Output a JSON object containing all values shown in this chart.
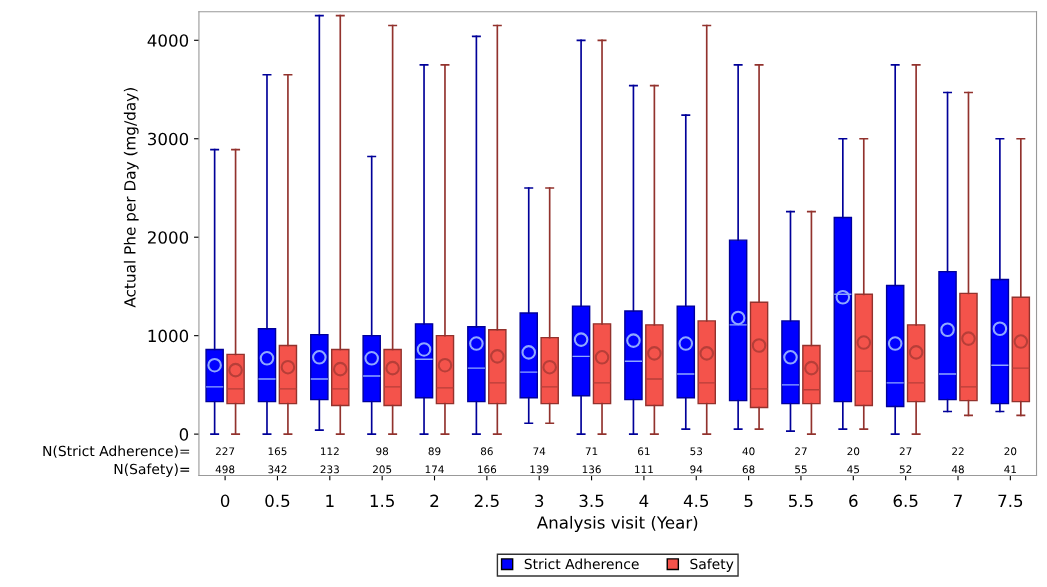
{
  "chart_data": {
    "type": "box",
    "xlabel": "Analysis visit (Year)",
    "ylabel": "Actual Phe per Day (mg/day)",
    "categories": [
      "0",
      "0.5",
      "1",
      "1.5",
      "2",
      "2.5",
      "3",
      "3.5",
      "4",
      "4.5",
      "5",
      "5.5",
      "6",
      "6.5",
      "7",
      "7.5"
    ],
    "ylim": [
      -420,
      4290
    ],
    "yticks": [
      0,
      1000,
      2000,
      3000,
      4000
    ],
    "grid": false,
    "legend": "bottom",
    "marker": "circle",
    "series": [
      {
        "name": "Strict Adherence",
        "color": "#0000ff",
        "boxes": [
          {
            "low": 0,
            "q1": 330,
            "median": 480,
            "q3": 860,
            "high": 2890,
            "mean": 700
          },
          {
            "low": 0,
            "q1": 330,
            "median": 560,
            "q3": 1070,
            "high": 3650,
            "mean": 770
          },
          {
            "low": 40,
            "q1": 350,
            "median": 560,
            "q3": 1010,
            "high": 4250,
            "mean": 780
          },
          {
            "low": 0,
            "q1": 330,
            "median": 590,
            "q3": 1000,
            "high": 2820,
            "mean": 770
          },
          {
            "low": 0,
            "q1": 370,
            "median": 760,
            "q3": 1120,
            "high": 3750,
            "mean": 860
          },
          {
            "low": 0,
            "q1": 330,
            "median": 670,
            "q3": 1090,
            "high": 4040,
            "mean": 920
          },
          {
            "low": 110,
            "q1": 370,
            "median": 630,
            "q3": 1230,
            "high": 2500,
            "mean": 830
          },
          {
            "low": 0,
            "q1": 390,
            "median": 790,
            "q3": 1300,
            "high": 4000,
            "mean": 960
          },
          {
            "low": 0,
            "q1": 350,
            "median": 740,
            "q3": 1250,
            "high": 3540,
            "mean": 950
          },
          {
            "low": 50,
            "q1": 370,
            "median": 610,
            "q3": 1300,
            "high": 3240,
            "mean": 920
          },
          {
            "low": 50,
            "q1": 340,
            "median": 1110,
            "q3": 1970,
            "high": 3750,
            "mean": 1180
          },
          {
            "low": 30,
            "q1": 310,
            "median": 500,
            "q3": 1150,
            "high": 2260,
            "mean": 780
          },
          {
            "low": 50,
            "q1": 330,
            "median": 1420,
            "q3": 2200,
            "high": 3000,
            "mean": 1390
          },
          {
            "low": 0,
            "q1": 280,
            "median": 520,
            "q3": 1510,
            "high": 3750,
            "mean": 920
          },
          {
            "low": 230,
            "q1": 350,
            "median": 610,
            "q3": 1650,
            "high": 3470,
            "mean": 1060
          },
          {
            "low": 230,
            "q1": 310,
            "median": 700,
            "q3": 1570,
            "high": 3000,
            "mean": 1070
          }
        ]
      },
      {
        "name": "Safety",
        "color": "#f4534b",
        "boxes": [
          {
            "low": 0,
            "q1": 310,
            "median": 460,
            "q3": 810,
            "high": 2890,
            "mean": 650
          },
          {
            "low": 0,
            "q1": 310,
            "median": 460,
            "q3": 900,
            "high": 3650,
            "mean": 680
          },
          {
            "low": 0,
            "q1": 290,
            "median": 460,
            "q3": 860,
            "high": 4250,
            "mean": 660
          },
          {
            "low": 0,
            "q1": 290,
            "median": 480,
            "q3": 860,
            "high": 4150,
            "mean": 670
          },
          {
            "low": 0,
            "q1": 310,
            "median": 470,
            "q3": 1000,
            "high": 3750,
            "mean": 700
          },
          {
            "low": 0,
            "q1": 310,
            "median": 520,
            "q3": 1060,
            "high": 4150,
            "mean": 790
          },
          {
            "low": 110,
            "q1": 310,
            "median": 480,
            "q3": 980,
            "high": 2500,
            "mean": 680
          },
          {
            "low": 0,
            "q1": 310,
            "median": 520,
            "q3": 1120,
            "high": 4000,
            "mean": 780
          },
          {
            "low": 0,
            "q1": 290,
            "median": 560,
            "q3": 1110,
            "high": 3540,
            "mean": 820
          },
          {
            "low": 0,
            "q1": 310,
            "median": 520,
            "q3": 1150,
            "high": 4150,
            "mean": 820
          },
          {
            "low": 50,
            "q1": 270,
            "median": 460,
            "q3": 1340,
            "high": 3750,
            "mean": 900
          },
          {
            "low": 0,
            "q1": 310,
            "median": 450,
            "q3": 900,
            "high": 2260,
            "mean": 670
          },
          {
            "low": 50,
            "q1": 290,
            "median": 640,
            "q3": 1420,
            "high": 3000,
            "mean": 930
          },
          {
            "low": 0,
            "q1": 330,
            "median": 520,
            "q3": 1110,
            "high": 3750,
            "mean": 830
          },
          {
            "low": 190,
            "q1": 340,
            "median": 480,
            "q3": 1430,
            "high": 3470,
            "mean": 970
          },
          {
            "low": 190,
            "q1": 330,
            "median": 670,
            "q3": 1390,
            "high": 3000,
            "mean": 940
          }
        ]
      }
    ],
    "annotations": [
      "N(Strict Adherence)=",
      "227",
      "165",
      "112",
      "98",
      "89",
      "86",
      "74",
      "71",
      "61",
      "53",
      "40",
      "27",
      "20",
      "27",
      "22",
      "20",
      "N(Safety)=",
      "498",
      "342",
      "233",
      "205",
      "174",
      "166",
      "139",
      "136",
      "111",
      "94",
      "68",
      "55",
      "45",
      "52",
      "48",
      "41"
    ]
  }
}
